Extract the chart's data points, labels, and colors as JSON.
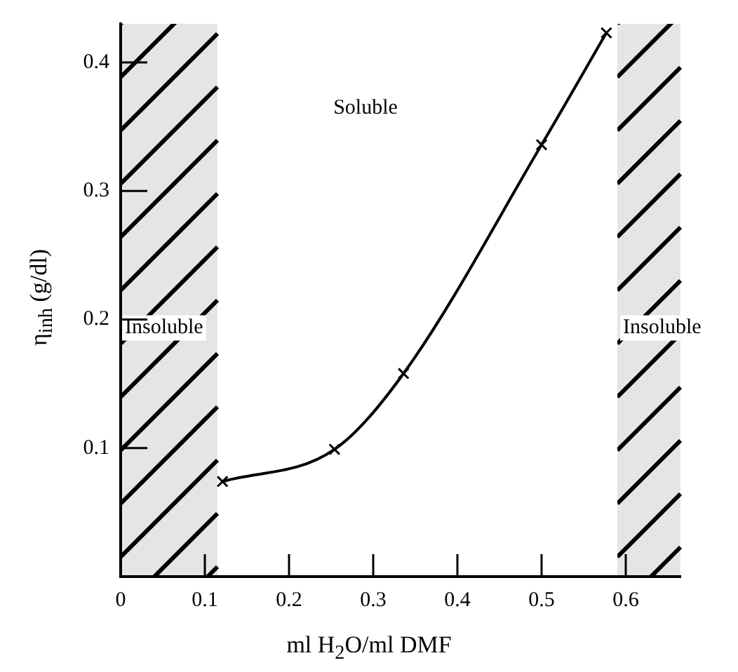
{
  "chart_data": {
    "type": "line",
    "xlabel": "ml H$_{2}$O/ml DMF",
    "ylabel": "η$_{inh}$ (g/dl)",
    "x": [
      0.121,
      0.254,
      0.336,
      0.5,
      0.577
    ],
    "series": [
      {
        "color": "#000000",
        "values": [
          0.074,
          0.099,
          0.158,
          0.336,
          0.423
        ]
      }
    ],
    "xlim": [
      0,
      0.665
    ],
    "xticks": [
      0,
      0.1,
      0.2,
      0.3,
      0.4,
      0.5,
      0.6
    ],
    "ylim": [
      0,
      0.43
    ],
    "yticks": [
      0.1,
      0.2,
      0.3,
      0.4
    ],
    "marker": "cross",
    "line_style": "solid",
    "legend": false,
    "bands": [
      {
        "axis": "x",
        "from": 0,
        "to": 0.115,
        "label": "Insoluble",
        "color": "#000000"
      },
      {
        "axis": "x",
        "from": 0.59,
        "to": 0.665,
        "label": "Insoluble",
        "color": "#000000"
      }
    ],
    "annotations": [
      "Soluble"
    ]
  }
}
